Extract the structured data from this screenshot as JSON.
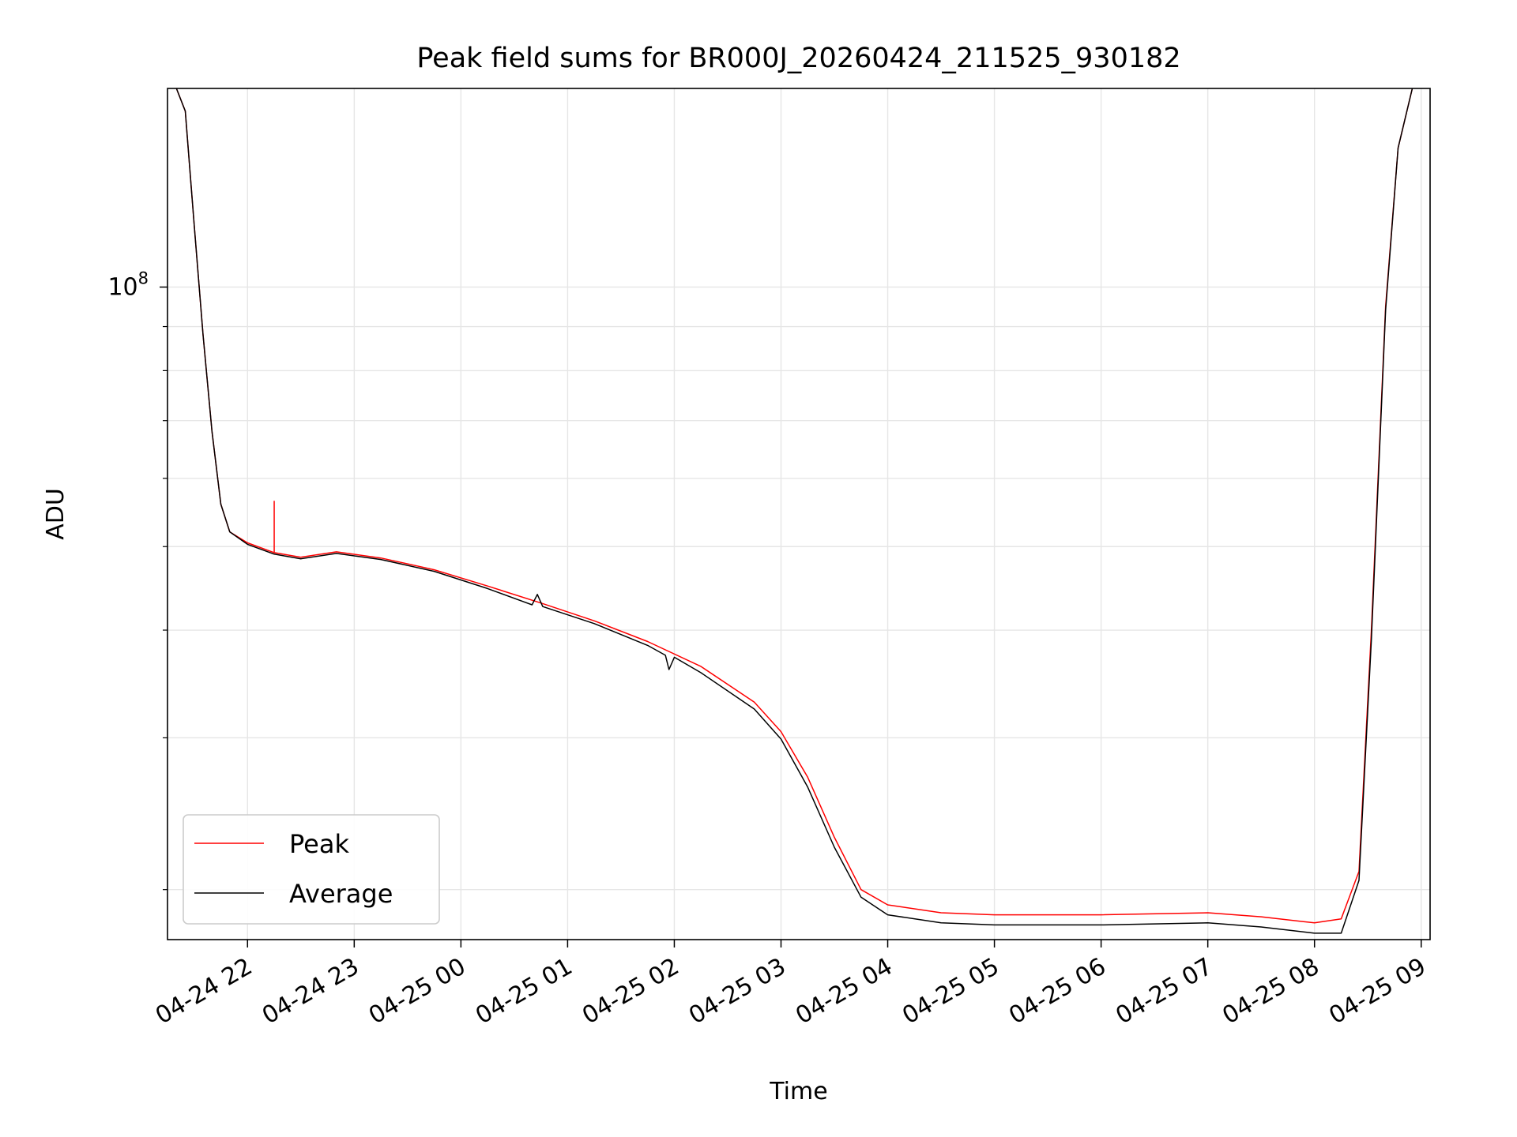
{
  "chart_data": {
    "type": "line",
    "title": "Peak field sums for BR000J_20260424_211525_930182",
    "xlabel": "Time",
    "ylabel": "ADU",
    "y_scale": "log",
    "ylim": [
      17500000,
      170000000
    ],
    "xlim": [
      "2026-04-24 21:15",
      "2026-04-25 09:05"
    ],
    "x_ticks": [
      {
        "t": "2026-04-24 22:00",
        "label": "04-24 22"
      },
      {
        "t": "2026-04-24 23:00",
        "label": "04-24 23"
      },
      {
        "t": "2026-04-25 00:00",
        "label": "04-25 00"
      },
      {
        "t": "2026-04-25 01:00",
        "label": "04-25 01"
      },
      {
        "t": "2026-04-25 02:00",
        "label": "04-25 02"
      },
      {
        "t": "2026-04-25 03:00",
        "label": "04-25 03"
      },
      {
        "t": "2026-04-25 04:00",
        "label": "04-25 04"
      },
      {
        "t": "2026-04-25 05:00",
        "label": "04-25 05"
      },
      {
        "t": "2026-04-25 06:00",
        "label": "04-25 06"
      },
      {
        "t": "2026-04-25 07:00",
        "label": "04-25 07"
      },
      {
        "t": "2026-04-25 08:00",
        "label": "04-25 08"
      },
      {
        "t": "2026-04-25 09:00",
        "label": "04-25 09"
      }
    ],
    "y_major_ticks": [
      {
        "value": 100000000,
        "base": "10",
        "exp": "8"
      }
    ],
    "y_minor_ticks": [
      20000000,
      30000000,
      40000000,
      50000000,
      60000000,
      70000000,
      80000000,
      90000000,
      200000000
    ],
    "grid": true,
    "legend_position": "lower-left",
    "series": [
      {
        "name": "Peak",
        "color": "#ff0000",
        "points": [
          [
            "2026-04-24 21:20",
            170000000
          ],
          [
            "2026-04-24 21:25",
            160000000
          ],
          [
            "2026-04-24 21:30",
            118000000
          ],
          [
            "2026-04-24 21:35",
            88000000
          ],
          [
            "2026-04-24 21:40",
            68000000
          ],
          [
            "2026-04-24 21:45",
            56000000
          ],
          [
            "2026-04-24 21:50",
            52000000
          ],
          [
            "2026-04-24 22:00",
            50500000
          ],
          [
            "2026-04-24 22:15",
            49200000
          ],
          [
            "2026-04-24 22:30",
            48600000
          ],
          [
            "2026-04-24 22:50",
            49300000
          ],
          [
            "2026-04-24 23:15",
            48500000
          ],
          [
            "2026-04-24 23:45",
            47000000
          ],
          [
            "2026-04-25 00:15",
            45000000
          ],
          [
            "2026-04-25 00:45",
            43000000
          ],
          [
            "2026-04-25 01:15",
            41000000
          ],
          [
            "2026-04-25 01:45",
            38800000
          ],
          [
            "2026-04-25 02:15",
            36300000
          ],
          [
            "2026-04-25 02:45",
            33000000
          ],
          [
            "2026-04-25 03:00",
            30500000
          ],
          [
            "2026-04-25 03:15",
            27000000
          ],
          [
            "2026-04-25 03:30",
            23000000
          ],
          [
            "2026-04-25 03:45",
            20000000
          ],
          [
            "2026-04-25 04:00",
            19200000
          ],
          [
            "2026-04-25 04:30",
            18800000
          ],
          [
            "2026-04-25 05:00",
            18700000
          ],
          [
            "2026-04-25 06:00",
            18700000
          ],
          [
            "2026-04-25 07:00",
            18800000
          ],
          [
            "2026-04-25 07:30",
            18600000
          ],
          [
            "2026-04-25 08:00",
            18300000
          ],
          [
            "2026-04-25 08:15",
            18500000
          ],
          [
            "2026-04-25 08:25",
            21000000
          ],
          [
            "2026-04-25 08:32",
            40000000
          ],
          [
            "2026-04-25 08:40",
            95000000
          ],
          [
            "2026-04-25 08:47",
            145000000
          ],
          [
            "2026-04-25 08:55",
            170000000
          ]
        ],
        "spikes": [
          [
            "2026-04-24 22:15",
            56500000
          ]
        ]
      },
      {
        "name": "Average",
        "color": "#000000",
        "points": [
          [
            "2026-04-24 21:20",
            170000000
          ],
          [
            "2026-04-24 21:25",
            160000000
          ],
          [
            "2026-04-24 21:30",
            118000000
          ],
          [
            "2026-04-24 21:35",
            88000000
          ],
          [
            "2026-04-24 21:40",
            68000000
          ],
          [
            "2026-04-24 21:45",
            56000000
          ],
          [
            "2026-04-24 21:50",
            52000000
          ],
          [
            "2026-04-24 22:00",
            50300000
          ],
          [
            "2026-04-24 22:15",
            49000000
          ],
          [
            "2026-04-24 22:30",
            48400000
          ],
          [
            "2026-04-24 22:50",
            49100000
          ],
          [
            "2026-04-24 23:15",
            48300000
          ],
          [
            "2026-04-24 23:45",
            46800000
          ],
          [
            "2026-04-25 00:15",
            44700000
          ],
          [
            "2026-04-25 00:40",
            42800000
          ],
          [
            "2026-04-25 00:43",
            44000000
          ],
          [
            "2026-04-25 00:46",
            42600000
          ],
          [
            "2026-04-25 01:15",
            40700000
          ],
          [
            "2026-04-25 01:45",
            38400000
          ],
          [
            "2026-04-25 01:55",
            37400000
          ],
          [
            "2026-04-25 01:57",
            36000000
          ],
          [
            "2026-04-25 02:00",
            37200000
          ],
          [
            "2026-04-25 02:15",
            35700000
          ],
          [
            "2026-04-25 02:45",
            32400000
          ],
          [
            "2026-04-25 03:00",
            29900000
          ],
          [
            "2026-04-25 03:15",
            26300000
          ],
          [
            "2026-04-25 03:30",
            22400000
          ],
          [
            "2026-04-25 03:45",
            19600000
          ],
          [
            "2026-04-25 04:00",
            18700000
          ],
          [
            "2026-04-25 04:30",
            18300000
          ],
          [
            "2026-04-25 05:00",
            18200000
          ],
          [
            "2026-04-25 06:00",
            18200000
          ],
          [
            "2026-04-25 07:00",
            18300000
          ],
          [
            "2026-04-25 07:30",
            18100000
          ],
          [
            "2026-04-25 08:00",
            17800000
          ],
          [
            "2026-04-25 08:15",
            17800000
          ],
          [
            "2026-04-25 08:25",
            20500000
          ],
          [
            "2026-04-25 08:32",
            39000000
          ],
          [
            "2026-04-25 08:40",
            94000000
          ],
          [
            "2026-04-25 08:47",
            145000000
          ],
          [
            "2026-04-25 08:55",
            170000000
          ]
        ]
      }
    ]
  }
}
